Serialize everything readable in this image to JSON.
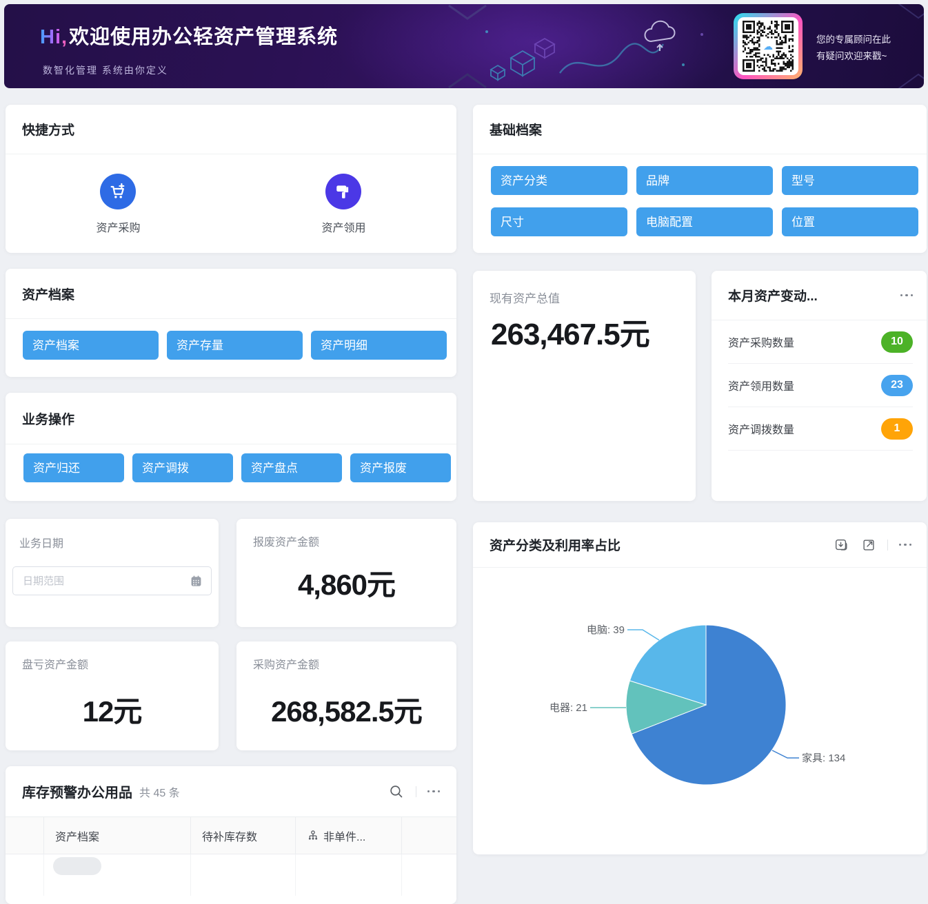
{
  "banner": {
    "greeting": "Hi,",
    "title": "欢迎使用办公轻资产管理系统",
    "subtitle": "数智化管理 系统由你定义",
    "qr_caption_line1": "您的专属顾问在此",
    "qr_caption_line2": "有疑问欢迎来戳~"
  },
  "shortcuts": {
    "title": "快捷方式",
    "items": [
      {
        "label": "资产采购",
        "icon": "cart-plus-icon",
        "color": "#2e6be5"
      },
      {
        "label": "资产领用",
        "icon": "paint-roller-icon",
        "color": "#4b38e6"
      }
    ]
  },
  "base_archive": {
    "title": "基础档案",
    "buttons": [
      "资产分类",
      "品牌",
      "型号",
      "尺寸",
      "电脑配置",
      "位置"
    ],
    "button_color": "#41a0ec"
  },
  "asset_archive": {
    "title": "资产档案",
    "buttons": [
      "资产档案",
      "资产存量",
      "资产明细"
    ]
  },
  "biz_ops": {
    "title": "业务操作",
    "buttons": [
      "资产归还",
      "资产调拨",
      "资产盘点",
      "资产报废"
    ]
  },
  "total_value": {
    "label": "现有资产总值",
    "value": "263,467.5元"
  },
  "monthly_change": {
    "title": "本月资产变动...",
    "items": [
      {
        "label": "资产采购数量",
        "count": "10",
        "color": "#4cb227"
      },
      {
        "label": "资产领用数量",
        "count": "23",
        "color": "#47a3ee"
      },
      {
        "label": "资产调拨数量",
        "count": "1",
        "color": "#ffa408"
      }
    ]
  },
  "biz_date": {
    "label": "业务日期",
    "placeholder": "日期范围"
  },
  "scrap_amount": {
    "label": "报废资产金额",
    "value": "4,860元"
  },
  "loss_amount": {
    "label": "盘亏资产金额",
    "value": "12元"
  },
  "purchase_amount": {
    "label": "采购资产金额",
    "value": "268,582.5元"
  },
  "inventory_table": {
    "title": "库存预警办公用品",
    "count_text": "共 45 条",
    "columns": [
      "资产档案",
      "待补库存数",
      "非单件..."
    ]
  },
  "chart_data": {
    "type": "pie",
    "title": "资产分类及利用率占比",
    "series": [
      {
        "name": "家具",
        "value": 134,
        "color": "#3e82d2"
      },
      {
        "name": "电器",
        "value": 21,
        "color": "#62c2bc"
      },
      {
        "name": "电脑",
        "value": 39,
        "color": "#58b7ea"
      }
    ],
    "start_angle_deg": 0,
    "clockwise": true,
    "label_format": "{name}:  {value}",
    "legend": "none"
  }
}
